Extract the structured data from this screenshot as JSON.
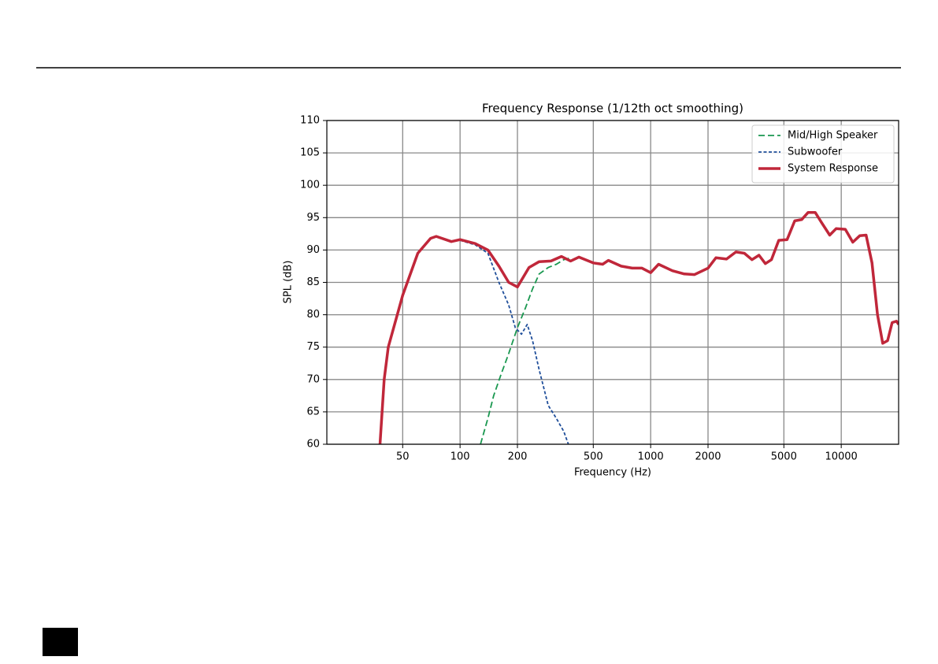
{
  "chart_data": {
    "type": "line",
    "title": "Frequency Response (1/12th oct smoothing)",
    "xlabel": "Frequency (Hz)",
    "ylabel": "SPL (dB)",
    "xscale": "log",
    "grid": true,
    "legend": "upper right",
    "xlim": [
      20,
      20000
    ],
    "ylim": [
      60,
      110
    ],
    "xticks": [
      50,
      100,
      200,
      500,
      1000,
      2000,
      5000,
      10000
    ],
    "yticks": [
      60,
      65,
      70,
      75,
      80,
      85,
      90,
      95,
      100,
      105,
      110
    ],
    "series": [
      {
        "name": "Mid/High Speaker",
        "color": "#1a9850",
        "linestyle": "dashed",
        "x": [
          128,
          140,
          150,
          165,
          180,
          200,
          220,
          240,
          260,
          290,
          320,
          350,
          380
        ],
        "values": [
          60,
          64,
          67.5,
          71,
          74,
          78,
          81,
          84,
          86.3,
          87.3,
          87.8,
          88.5,
          88.8
        ]
      },
      {
        "name": "Subwoofer",
        "color": "#1f4e9a",
        "linestyle": "dotted",
        "x": [
          100,
          120,
          140,
          160,
          180,
          195,
          210,
          225,
          240,
          260,
          290,
          320,
          350,
          370
        ],
        "values": [
          91.5,
          90.8,
          89.5,
          85,
          81.5,
          78,
          77,
          78.5,
          76,
          71.5,
          66,
          64,
          62,
          60
        ]
      },
      {
        "name": "System Response",
        "color": "#c0273a",
        "linestyle": "solid",
        "x": [
          38,
          40,
          42,
          50,
          60,
          70,
          75,
          90,
          100,
          120,
          140,
          160,
          180,
          200,
          230,
          260,
          300,
          340,
          380,
          420,
          500,
          560,
          600,
          700,
          800,
          900,
          1000,
          1100,
          1300,
          1500,
          1700,
          2000,
          2200,
          2500,
          2800,
          3100,
          3400,
          3700,
          4000,
          4300,
          4700,
          5200,
          5700,
          6200,
          6700,
          7300,
          7900,
          8700,
          9400,
          10500,
          11500,
          12500,
          13500,
          14500,
          15500,
          16500,
          17500,
          18500,
          19500,
          20000
        ],
        "values": [
          60,
          70,
          75,
          83,
          89.5,
          91.8,
          92.1,
          91.3,
          91.6,
          91.0,
          90.0,
          87.5,
          85,
          84.3,
          87.3,
          88.2,
          88.3,
          89.0,
          88.3,
          88.9,
          88.0,
          87.8,
          88.4,
          87.5,
          87.2,
          87.2,
          86.5,
          87.8,
          86.8,
          86.3,
          86.2,
          87.2,
          88.8,
          88.6,
          89.7,
          89.5,
          88.5,
          89.2,
          87.9,
          88.5,
          91.5,
          91.6,
          94.5,
          94.7,
          95.8,
          95.8,
          94.2,
          92.3,
          93.3,
          93.2,
          91.2,
          92.2,
          92.3,
          88,
          80,
          75.6,
          76,
          78.8,
          79,
          78.5
        ]
      }
    ]
  }
}
